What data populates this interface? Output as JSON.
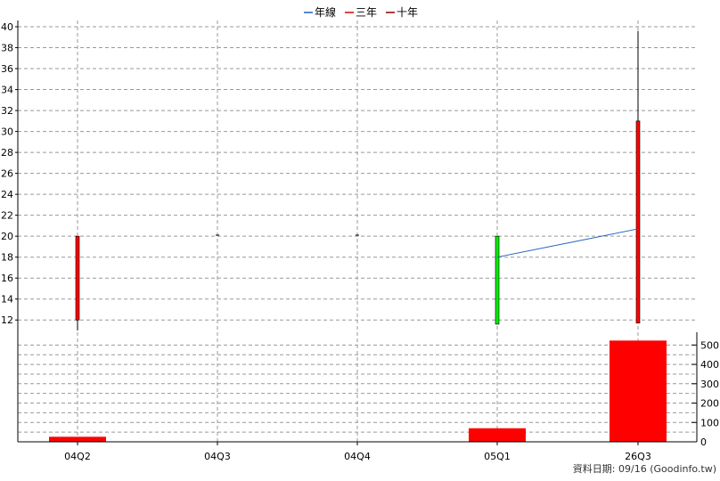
{
  "chart_data": {
    "type": "candlestick",
    "categories": [
      "04Q2",
      "04Q3",
      "04Q4",
      "05Q1",
      "26Q3"
    ],
    "legend": [
      {
        "label": "年線",
        "color": "#1f5fbf"
      },
      {
        "label": "三年",
        "color": "#e00000"
      },
      {
        "label": "十年",
        "color": "#8b0000"
      }
    ],
    "price": {
      "ylim": [
        11,
        40
      ],
      "yticks": [
        12,
        14,
        16,
        18,
        20,
        22,
        24,
        26,
        28,
        30,
        32,
        34,
        36,
        38,
        40
      ],
      "candles": [
        {
          "category": "04Q2",
          "open": 20.0,
          "close": 12.0,
          "high": 20.0,
          "low": 11.0,
          "color": "#ff0000"
        },
        {
          "category": "04Q3",
          "open": 20.1,
          "close": 20.1,
          "high": 20.1,
          "low": 20.1,
          "color": "#000000"
        },
        {
          "category": "04Q4",
          "open": 20.1,
          "close": 20.1,
          "high": 20.1,
          "low": 20.1,
          "color": "#000000"
        },
        {
          "category": "05Q1",
          "open": 20.0,
          "close": 11.6,
          "high": 20.0,
          "low": 11.6,
          "color": "#00ee00"
        },
        {
          "category": "26Q3",
          "open": 31.0,
          "close": 11.7,
          "high": 39.6,
          "low": 11.7,
          "color": "#ff0000"
        }
      ],
      "year_line": {
        "color": "#1f5fbf",
        "points": [
          {
            "category": "05Q1",
            "value": 18.0
          },
          {
            "category": "26Q3",
            "value": 20.7
          }
        ]
      }
    },
    "volume": {
      "ylim": [
        0,
        520
      ],
      "yticks": [
        0,
        100,
        200,
        300,
        400,
        500
      ],
      "values": [
        26,
        0,
        0,
        70,
        523
      ],
      "color": "#ff0000"
    }
  },
  "footer": {
    "source": "資料日期: 09/16  (Goodinfo.tw)"
  }
}
